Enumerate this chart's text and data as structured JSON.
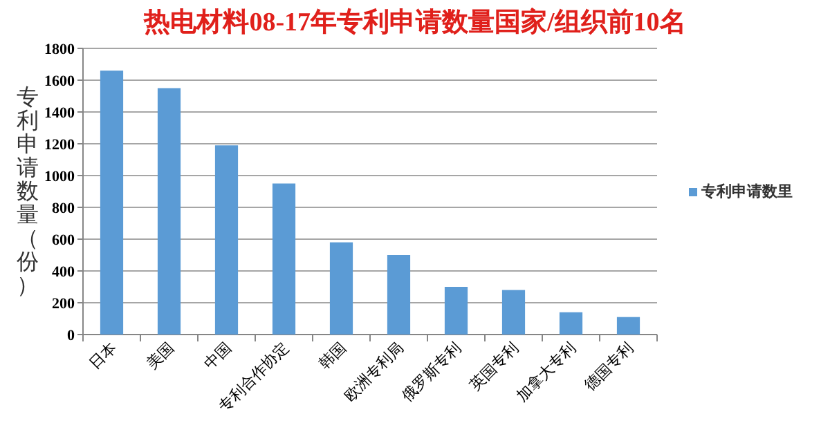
{
  "chart_data": {
    "type": "bar",
    "title": "热电材料08-17年专利申请数量国家/组织前10名",
    "ylabel": "专利申请数量（份）",
    "categories": [
      "日本",
      "美国",
      "中国",
      "专利合作协定",
      "韩国",
      "欧洲专利局",
      "俄罗斯专利",
      "英国专利",
      "加拿大专利",
      "德国专利"
    ],
    "series": [
      {
        "name": "专利申请数里",
        "color": "#5b9bd5",
        "values": [
          1660,
          1550,
          1190,
          950,
          580,
          500,
          300,
          280,
          140,
          110
        ]
      }
    ],
    "ylim": [
      0,
      1800
    ],
    "yticks": [
      0,
      200,
      400,
      600,
      800,
      1000,
      1200,
      1400,
      1600,
      1800
    ],
    "grid": "y",
    "legend": "right"
  }
}
